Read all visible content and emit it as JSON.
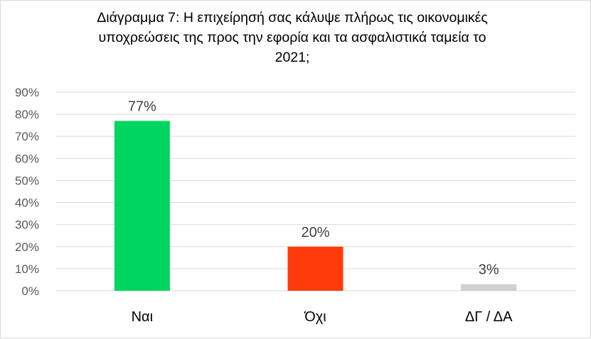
{
  "chart_data": {
    "type": "bar",
    "title_lines": [
      "Διάγραμμα 7: Η επιχείρησή σας κάλυψε πλήρως τις οικονομικές",
      "υποχρεώσεις της προς την εφορία και τα ασφαλιστικά ταμεία το",
      "2021;"
    ],
    "categories": [
      "Ναι",
      "Όχι",
      "ΔΓ / ΔΑ"
    ],
    "values": [
      77,
      20,
      3
    ],
    "data_labels": [
      "77%",
      "20%",
      "3%"
    ],
    "colors": [
      "#00d65f",
      "#ff3b0a",
      "#d0d0d0"
    ],
    "ylim": [
      0,
      90
    ],
    "yticks": [
      0,
      10,
      20,
      30,
      40,
      50,
      60,
      70,
      80,
      90
    ],
    "ytick_labels": [
      "0%",
      "10%",
      "20%",
      "30%",
      "40%",
      "50%",
      "60%",
      "70%",
      "80%",
      "90%"
    ],
    "grid": true,
    "gridline_color": "#d9d9d9",
    "xlabel": "",
    "ylabel": ""
  }
}
